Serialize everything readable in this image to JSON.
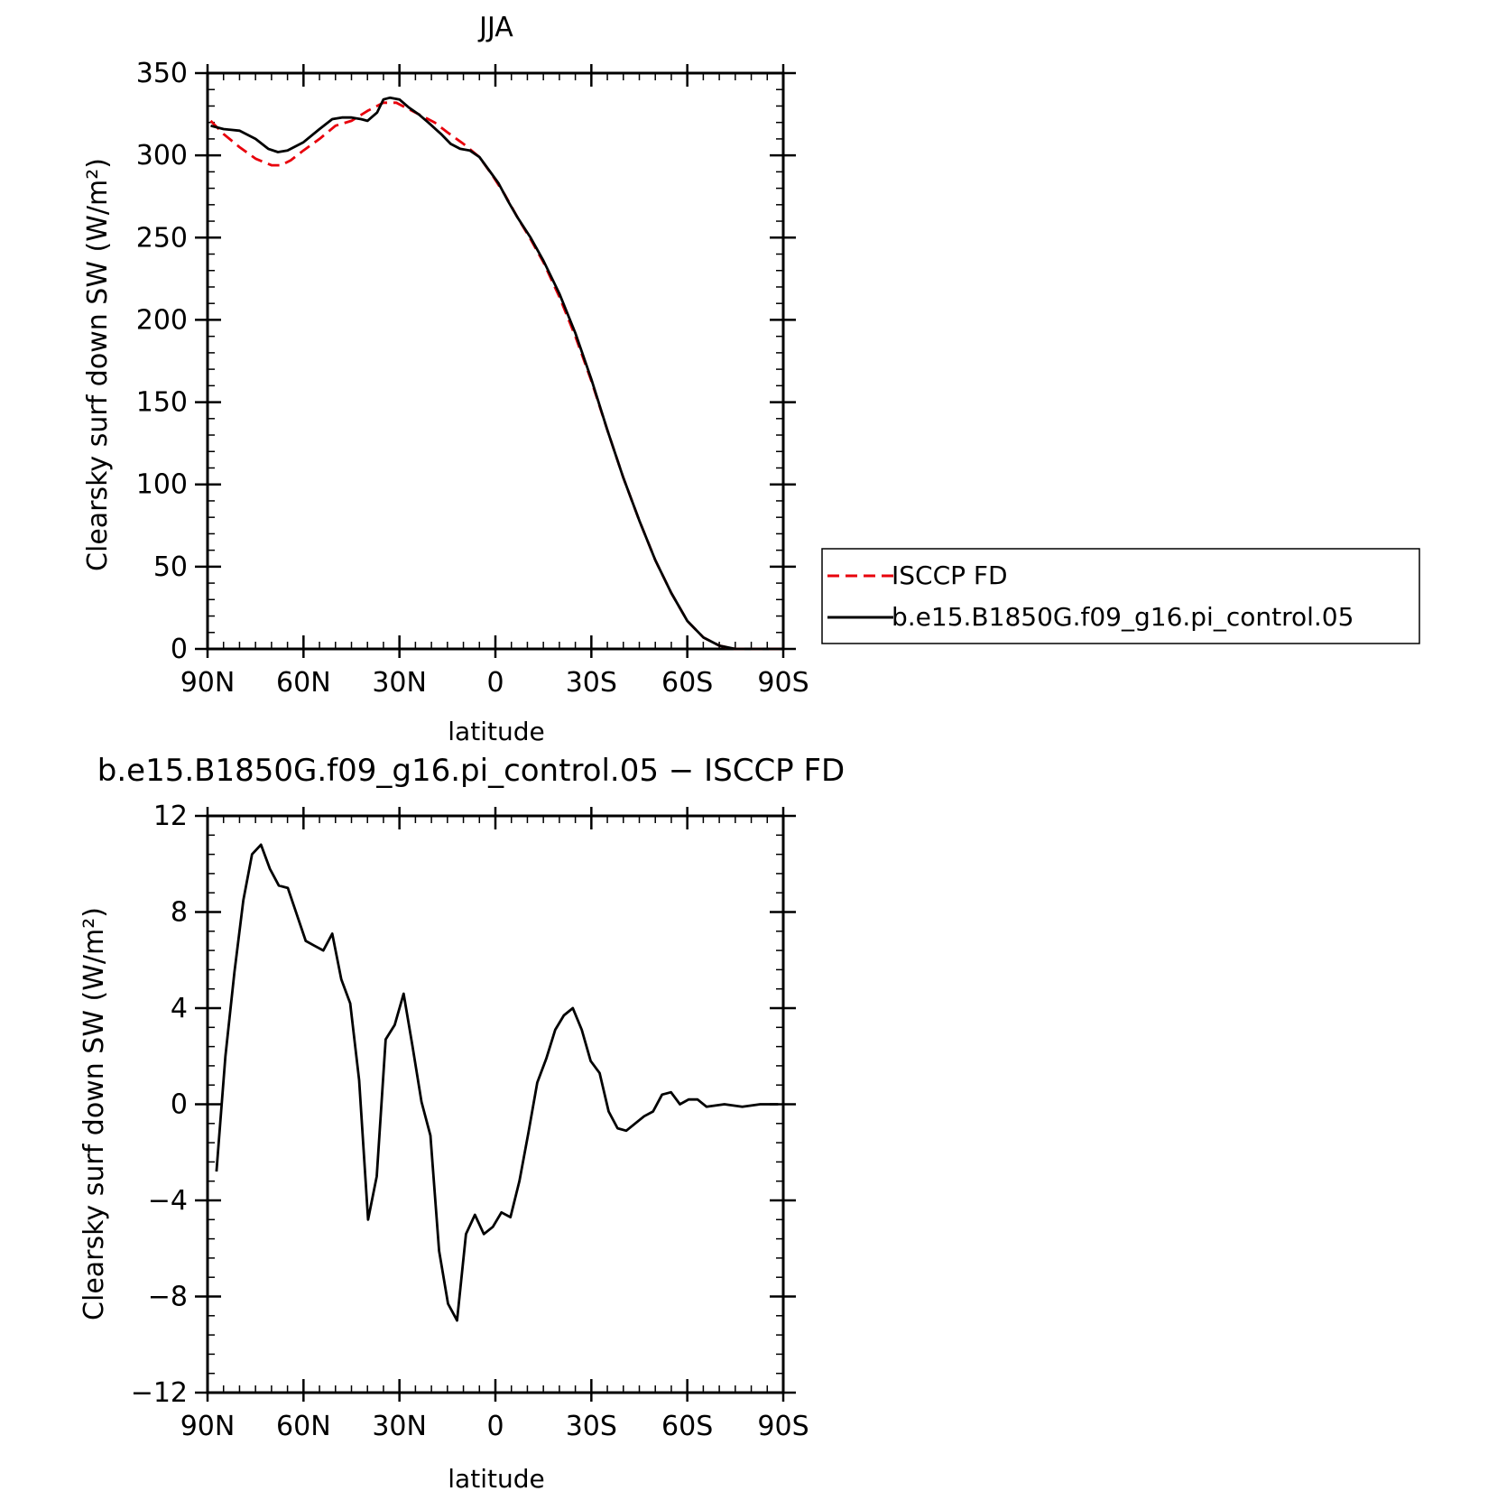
{
  "chart_data": [
    {
      "type": "line",
      "title": "JJA",
      "xlabel": "latitude",
      "ylabel": "Clearsky surf down SW (W/m²)",
      "xlim": [
        90,
        -90
      ],
      "ylim": [
        0,
        350
      ],
      "x_ticks": [
        90,
        60,
        30,
        0,
        -30,
        -60,
        -90
      ],
      "x_tick_labels": [
        "90N",
        "60N",
        "30N",
        "0",
        "30S",
        "60S",
        "90S"
      ],
      "y_ticks": [
        0,
        50,
        100,
        150,
        200,
        250,
        300,
        350
      ],
      "y_tick_labels": [
        "0",
        "50",
        "100",
        "150",
        "200",
        "250",
        "300",
        "350"
      ],
      "grid": false,
      "legend_position": "right",
      "series": [
        {
          "name": "ISCCP FD",
          "color": "#e8000b",
          "dash": "dashed",
          "x": [
            89,
            85,
            80,
            75,
            70,
            67,
            64,
            60,
            55,
            50,
            45,
            40,
            35,
            31,
            27,
            23,
            19,
            15,
            10,
            5,
            1,
            -3,
            -7,
            -11,
            -15,
            -20,
            -25,
            -30,
            -35,
            -40,
            -45,
            -50,
            -55,
            -60,
            -65,
            -70,
            -75,
            -78,
            -81,
            -85,
            -89
          ],
          "y": [
            321,
            313,
            305,
            298,
            294,
            294,
            297,
            303,
            310,
            318,
            321,
            327,
            332,
            332,
            328,
            324,
            320,
            314,
            307,
            299,
            288,
            276,
            262,
            249,
            235,
            214,
            190,
            163,
            133,
            104,
            78,
            54,
            34,
            17,
            7,
            2,
            0,
            0,
            0,
            0,
            0
          ]
        },
        {
          "name": "b.e15.B1850G.f09_g16.pi_control.05",
          "color": "#000000",
          "dash": "solid",
          "x": [
            89,
            85,
            80,
            75,
            71,
            68,
            65,
            60,
            55,
            51,
            48,
            45,
            42,
            40,
            37,
            35,
            33,
            30,
            27,
            24,
            21,
            17,
            14,
            11,
            8,
            5,
            2,
            -1,
            -4,
            -7,
            -11,
            -15,
            -20,
            -25,
            -30,
            -35,
            -40,
            -45,
            -50,
            -55,
            -60,
            -65,
            -70,
            -75,
            -78,
            -81,
            -85,
            -89
          ],
          "y": [
            318,
            316,
            315,
            310,
            304,
            302,
            303,
            308,
            316,
            322,
            323,
            323,
            322,
            321,
            326,
            334,
            335,
            334,
            329,
            325,
            320,
            313,
            307,
            304,
            303,
            299,
            291,
            283,
            272,
            262,
            250,
            236,
            216,
            192,
            164,
            133,
            104,
            78,
            54,
            34,
            17,
            7,
            2,
            0,
            0,
            0,
            0,
            0
          ]
        }
      ]
    },
    {
      "type": "line",
      "title": "b.e15.B1850G.f09_g16.pi_control.05 − ISCCP FD",
      "xlabel": "latitude",
      "ylabel": "Clearsky surf down SW (W/m²)",
      "xlim": [
        90,
        -90
      ],
      "ylim": [
        -12,
        12
      ],
      "x_ticks": [
        90,
        60,
        30,
        0,
        -30,
        -60,
        -90
      ],
      "x_tick_labels": [
        "90N",
        "60N",
        "30N",
        "0",
        "30S",
        "60S",
        "90S"
      ],
      "y_ticks": [
        -12,
        -8,
        -4,
        0,
        4,
        8,
        12
      ],
      "y_tick_labels": [
        "−12",
        "−8",
        "−4",
        "0",
        "4",
        "8",
        "12"
      ],
      "grid": false,
      "series": [
        {
          "color": "#000000",
          "dash": "solid",
          "x": [
            87.2,
            84.4,
            81.6,
            78.8,
            76.1,
            73.3,
            70.5,
            67.7,
            64.9,
            62.1,
            59.3,
            56.6,
            53.8,
            51.0,
            48.2,
            45.4,
            42.6,
            39.8,
            37.1,
            34.3,
            31.5,
            28.7,
            25.9,
            23.1,
            20.3,
            17.6,
            14.8,
            12.0,
            9.2,
            6.4,
            3.6,
            0.8,
            -1.9,
            -4.7,
            -7.5,
            -10.3,
            -13.1,
            -15.9,
            -18.7,
            -21.4,
            -24.2,
            -27.0,
            -29.8,
            -32.6,
            -35.4,
            -38.2,
            -40.9,
            -43.7,
            -46.5,
            -49.3,
            -52.1,
            -54.9,
            -57.7,
            -60.4,
            -63.2,
            -66.0,
            -71.6,
            -77.2,
            -82.8,
            -88.4
          ],
          "y": [
            -2.8,
            2.0,
            5.5,
            8.5,
            10.4,
            10.8,
            9.8,
            9.1,
            9.0,
            7.9,
            6.8,
            6.6,
            6.4,
            7.1,
            5.2,
            4.2,
            1.0,
            -4.8,
            -3.0,
            2.7,
            3.3,
            4.6,
            2.4,
            0.1,
            -1.3,
            -6.1,
            -8.3,
            -9.0,
            -5.4,
            -4.6,
            -5.4,
            -5.1,
            -4.5,
            -4.7,
            -3.2,
            -1.2,
            0.9,
            1.9,
            3.1,
            3.7,
            4.0,
            3.1,
            1.8,
            1.3,
            -0.3,
            -1.0,
            -1.1,
            -0.8,
            -0.5,
            -0.3,
            0.4,
            0.5,
            0.0,
            0.2,
            0.2,
            -0.1,
            0.0,
            -0.1,
            0.0,
            0.0
          ]
        }
      ]
    }
  ]
}
